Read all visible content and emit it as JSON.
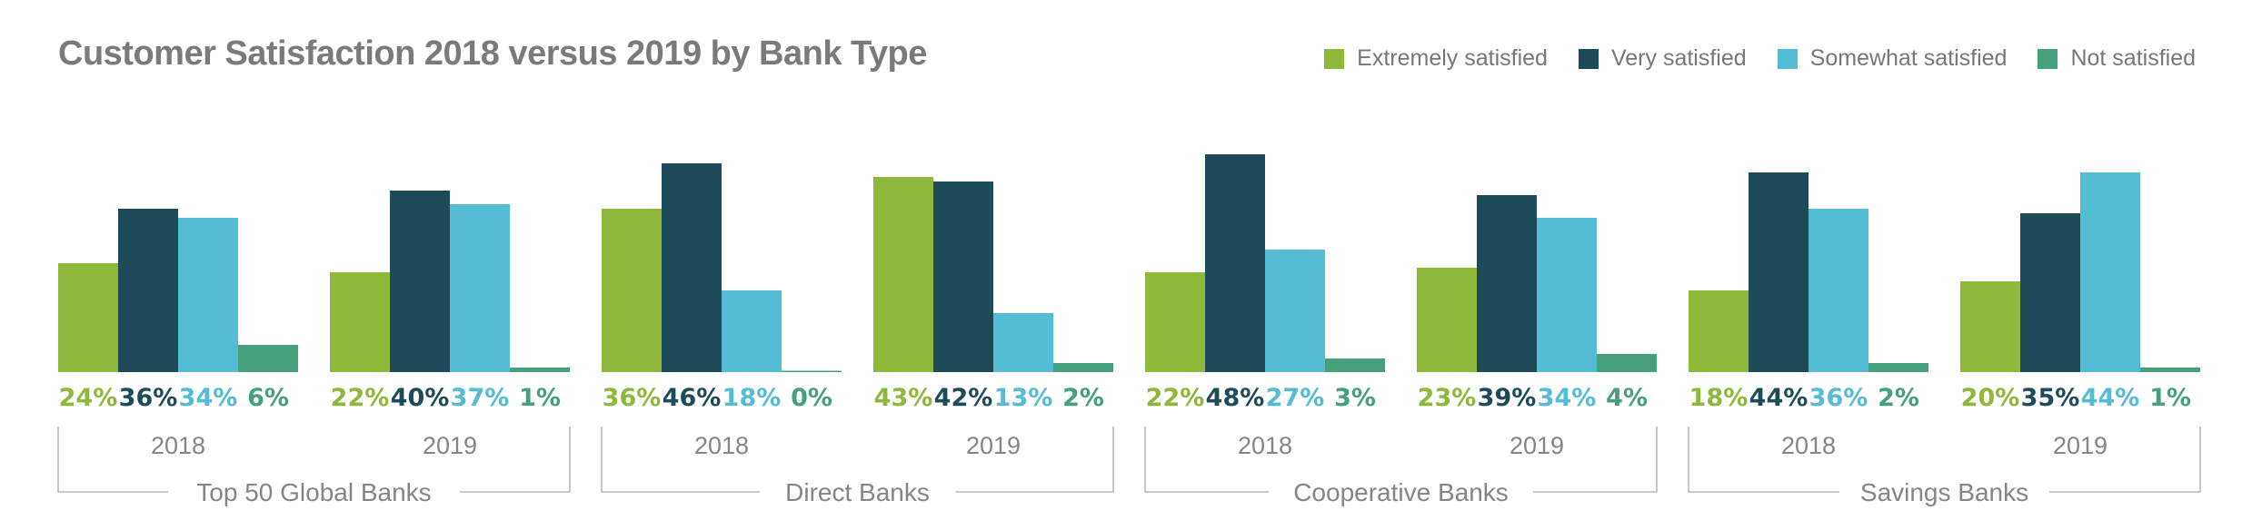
{
  "chart_data": {
    "type": "bar",
    "title": "Customer Satisfaction 2018 versus 2019 by Bank Type",
    "xlabel": "",
    "ylabel": "",
    "ylim": [
      0,
      50
    ],
    "grid": false,
    "legend_position": "top-right",
    "value_suffix": "%",
    "series": [
      {
        "name": "Extremely satisfied",
        "color": "#8db83a"
      },
      {
        "name": "Very satisfied",
        "color": "#1e4b5a"
      },
      {
        "name": "Somewhat satisfied",
        "color": "#54bcd4"
      },
      {
        "name": "Not satisfied",
        "color": "#46a07c"
      }
    ],
    "groups": [
      {
        "name": "Top 50 Global Banks",
        "years": [
          {
            "year": "2018",
            "values": [
              24,
              36,
              34,
              6
            ]
          },
          {
            "year": "2019",
            "values": [
              22,
              40,
              37,
              1
            ]
          }
        ]
      },
      {
        "name": "Direct Banks",
        "years": [
          {
            "year": "2018",
            "values": [
              36,
              46,
              18,
              0
            ]
          },
          {
            "year": "2019",
            "values": [
              43,
              42,
              13,
              2
            ]
          }
        ]
      },
      {
        "name": "Cooperative Banks",
        "years": [
          {
            "year": "2018",
            "values": [
              22,
              48,
              27,
              3
            ]
          },
          {
            "year": "2019",
            "values": [
              23,
              39,
              34,
              4
            ]
          }
        ]
      },
      {
        "name": "Savings Banks",
        "years": [
          {
            "year": "2018",
            "values": [
              18,
              44,
              36,
              2
            ]
          },
          {
            "year": "2019",
            "values": [
              20,
              35,
              44,
              1
            ]
          }
        ]
      }
    ]
  }
}
